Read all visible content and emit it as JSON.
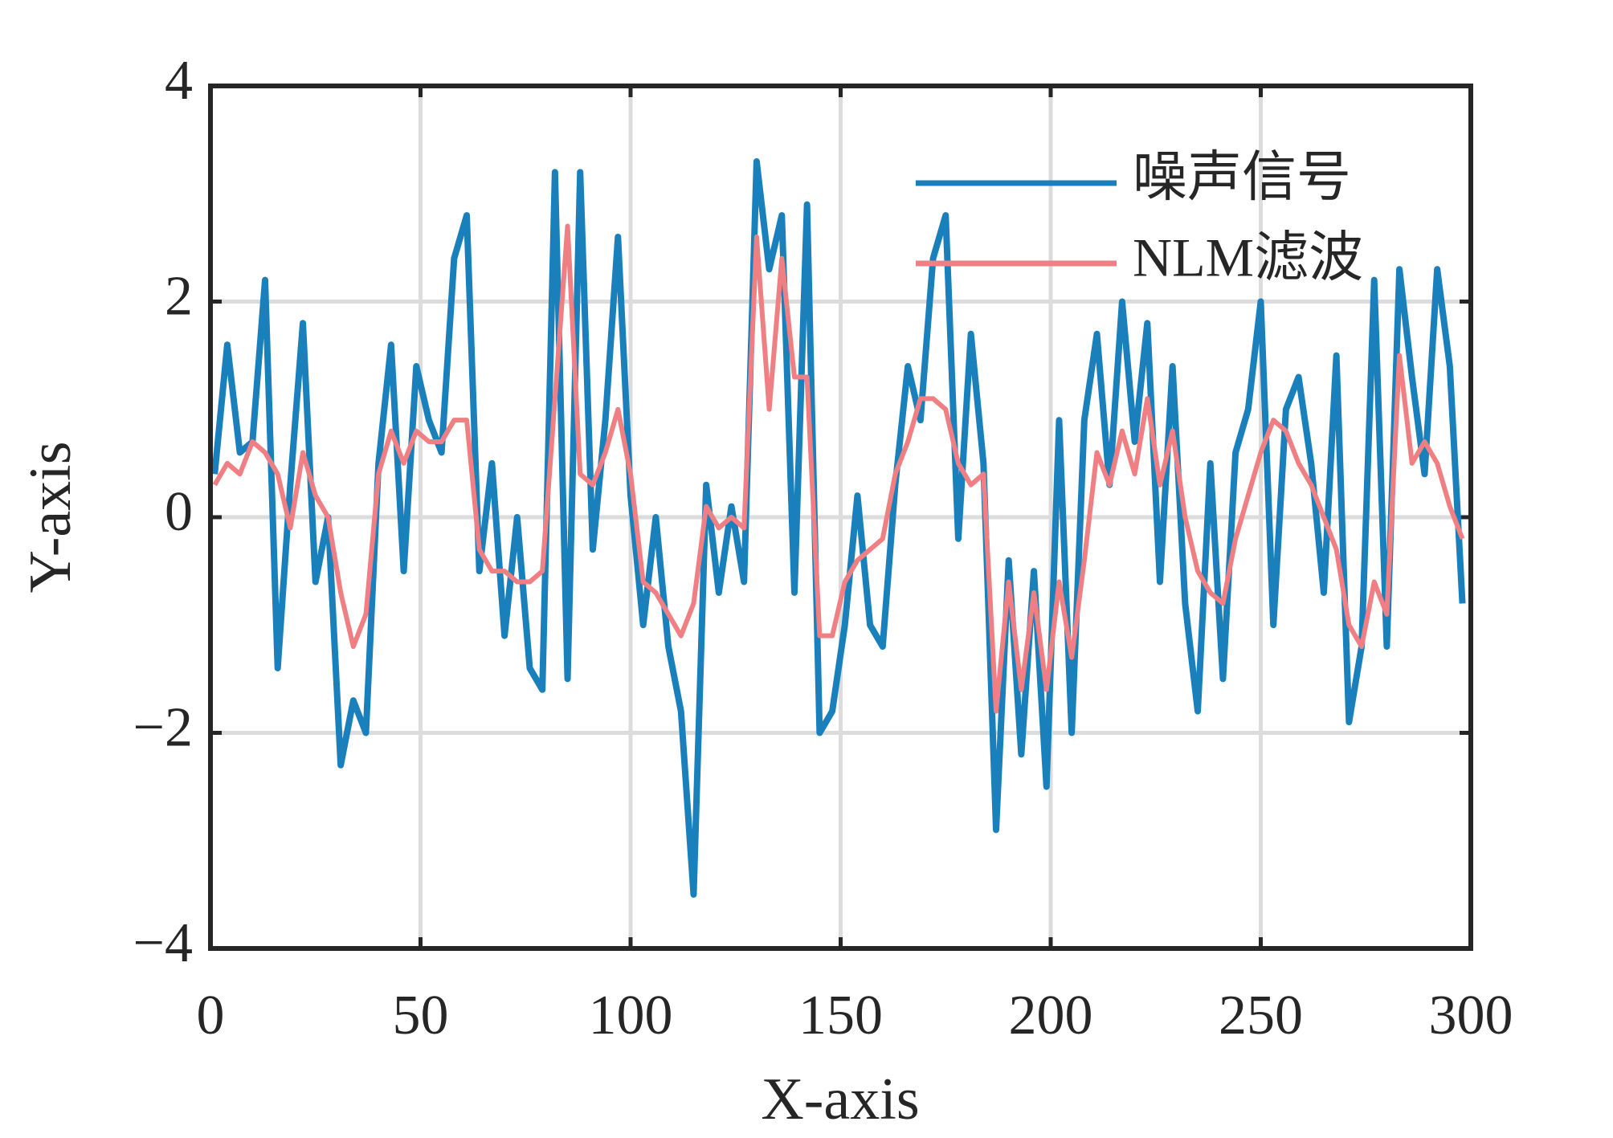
{
  "chart_data": {
    "type": "line",
    "x_label": "X-axis",
    "y_label": "Y-axis",
    "x": [
      1,
      4,
      7,
      10,
      13,
      16,
      19,
      22,
      25,
      28,
      31,
      34,
      37,
      40,
      43,
      46,
      49,
      52,
      55,
      58,
      61,
      64,
      67,
      70,
      73,
      76,
      79,
      82,
      85,
      88,
      91,
      94,
      97,
      100,
      103,
      106,
      109,
      112,
      115,
      118,
      121,
      124,
      127,
      130,
      133,
      136,
      139,
      142,
      145,
      148,
      151,
      154,
      157,
      160,
      163,
      166,
      169,
      172,
      175,
      178,
      181,
      184,
      187,
      190,
      193,
      196,
      199,
      202,
      205,
      208,
      211,
      214,
      217,
      220,
      223,
      226,
      229,
      232,
      235,
      238,
      241,
      244,
      247,
      250,
      253,
      256,
      259,
      262,
      265,
      268,
      271,
      274,
      277,
      280,
      283,
      286,
      289,
      292,
      295,
      298
    ],
    "series": [
      {
        "name": "噪声信号",
        "color": "#1a80bb",
        "values": [
          0.4,
          1.6,
          0.6,
          0.7,
          2.2,
          -1.4,
          0.3,
          1.8,
          -0.6,
          0.0,
          -2.3,
          -1.7,
          -2.0,
          0.5,
          1.6,
          -0.5,
          1.4,
          0.9,
          0.6,
          2.4,
          2.8,
          -0.5,
          0.5,
          -1.1,
          0.0,
          -1.4,
          -1.6,
          3.2,
          -1.5,
          3.2,
          -0.3,
          0.9,
          2.6,
          0.2,
          -1.0,
          0.0,
          -1.2,
          -1.8,
          -3.5,
          0.3,
          -0.7,
          0.1,
          -0.6,
          3.3,
          2.3,
          2.8,
          -0.7,
          2.9,
          -2.0,
          -1.8,
          -1.0,
          0.2,
          -1.0,
          -1.2,
          0.3,
          1.4,
          0.9,
          2.4,
          2.8,
          -0.2,
          1.7,
          0.5,
          -2.9,
          -0.4,
          -2.2,
          -0.5,
          -2.5,
          0.9,
          -2.0,
          0.9,
          1.7,
          0.3,
          2.0,
          0.7,
          1.8,
          -0.6,
          1.4,
          -0.8,
          -1.8,
          0.5,
          -1.5,
          0.6,
          1.0,
          2.0,
          -1.0,
          1.0,
          1.3,
          0.5,
          -0.7,
          1.5,
          -1.9,
          -1.2,
          2.2,
          -1.2,
          2.3,
          1.3,
          0.4,
          2.3,
          1.4,
          -0.8
        ]
      },
      {
        "name": "NLM滤波",
        "color": "#f07f84",
        "values": [
          0.3,
          0.5,
          0.4,
          0.7,
          0.6,
          0.4,
          -0.1,
          0.6,
          0.2,
          0.0,
          -0.7,
          -1.2,
          -0.9,
          0.4,
          0.8,
          0.5,
          0.8,
          0.7,
          0.7,
          0.9,
          0.9,
          -0.3,
          -0.5,
          -0.5,
          -0.6,
          -0.6,
          -0.5,
          1.1,
          2.7,
          0.4,
          0.3,
          0.6,
          1.0,
          0.4,
          -0.6,
          -0.7,
          -0.9,
          -1.1,
          -0.8,
          0.1,
          -0.1,
          0.0,
          -0.1,
          2.6,
          1.0,
          2.4,
          1.3,
          1.3,
          -1.1,
          -1.1,
          -0.6,
          -0.4,
          -0.3,
          -0.2,
          0.4,
          0.7,
          1.1,
          1.1,
          1.0,
          0.5,
          0.3,
          0.4,
          -1.8,
          -0.6,
          -1.6,
          -0.7,
          -1.6,
          -0.6,
          -1.3,
          -0.4,
          0.6,
          0.3,
          0.8,
          0.4,
          1.1,
          0.3,
          0.8,
          0.0,
          -0.5,
          -0.7,
          -0.8,
          -0.2,
          0.2,
          0.6,
          0.9,
          0.8,
          0.5,
          0.3,
          0.0,
          -0.3,
          -1.0,
          -1.2,
          -0.6,
          -0.9,
          1.5,
          0.5,
          0.7,
          0.5,
          0.1,
          -0.2
        ]
      }
    ],
    "xlim": [
      0,
      300
    ],
    "xticks": [
      0,
      50,
      100,
      150,
      200,
      250,
      300
    ],
    "ylim": [
      -4,
      4
    ],
    "yticks": [
      {
        "value": -4,
        "label": "−4"
      },
      {
        "value": -2,
        "label": "−2"
      },
      0,
      2,
      4
    ],
    "grid": true,
    "legend": "upper right"
  }
}
